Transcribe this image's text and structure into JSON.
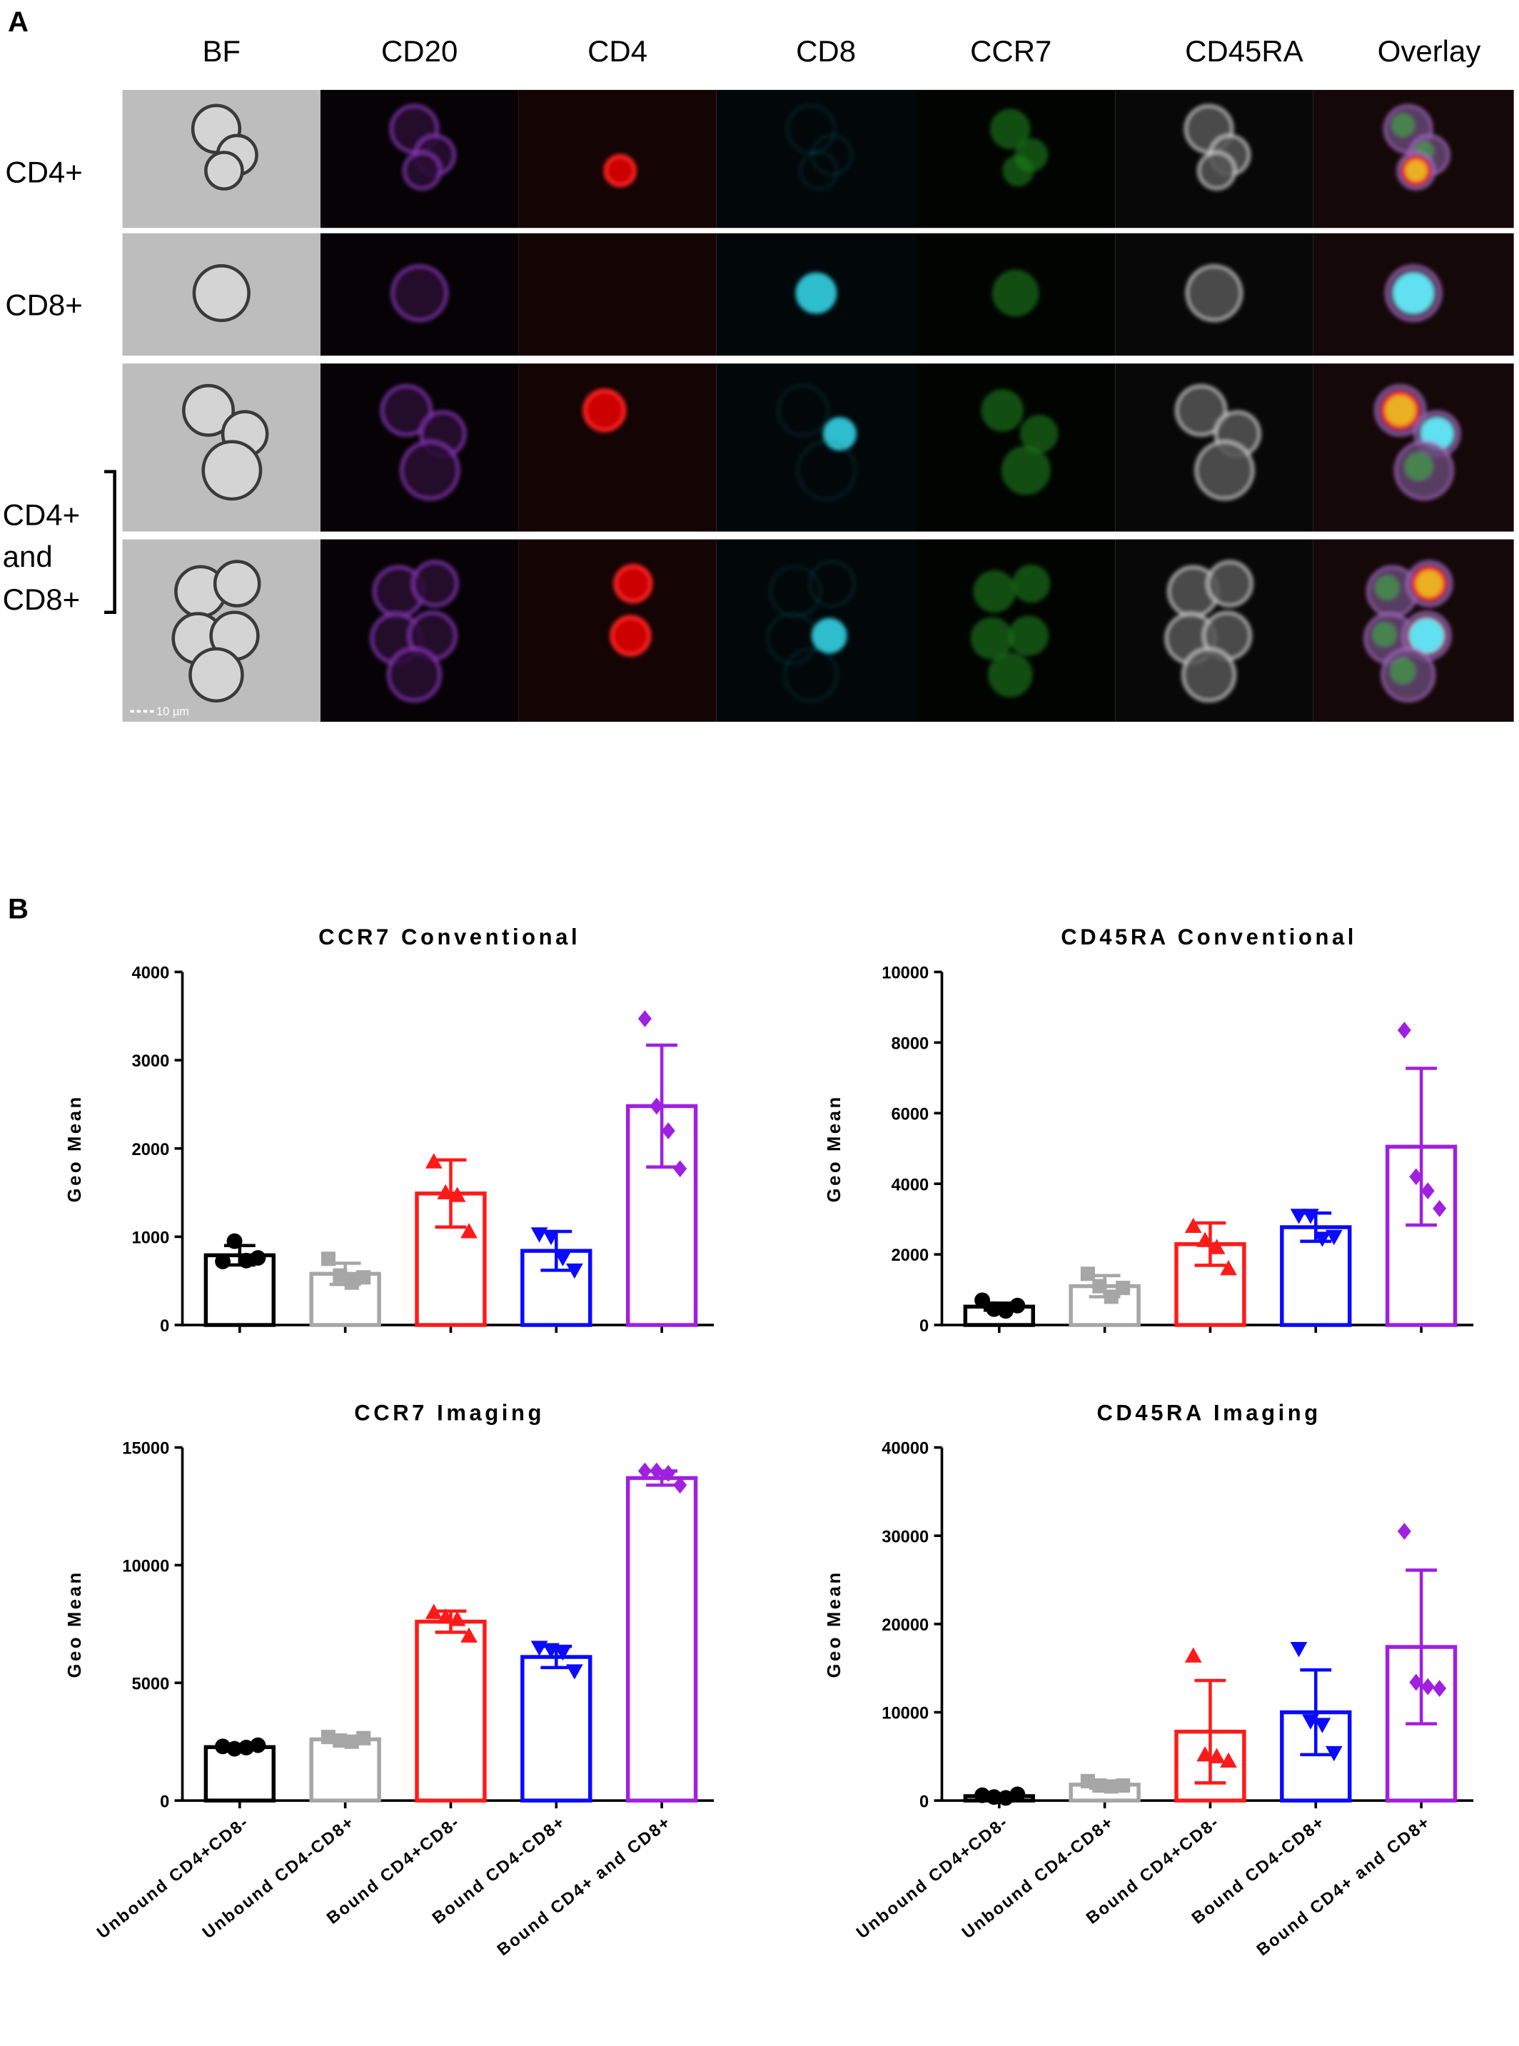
{
  "panel_a": {
    "label": "A",
    "columns": [
      "BF",
      "CD20",
      "CD4",
      "CD8",
      "CCR7",
      "CD45RA",
      "Overlay"
    ],
    "rows": [
      "CD4+",
      "CD8+"
    ],
    "group_label": [
      "CD4+",
      "and",
      "CD8+"
    ],
    "scale_bar": "10 µm"
  },
  "panel_b": {
    "label": "B"
  },
  "chart_data": [
    {
      "type": "bar",
      "title": "CCR7 Conventional",
      "ylabel": "Geo Mean",
      "categories": [
        null,
        null,
        null,
        null,
        null
      ],
      "values": [
        790,
        580,
        1490,
        840,
        2480
      ],
      "errors": [
        110,
        120,
        380,
        220,
        690
      ],
      "points": [
        [
          720,
          950,
          730,
          760
        ],
        [
          750,
          560,
          480,
          540
        ],
        [
          1850,
          1500,
          1470,
          1060
        ],
        [
          1030,
          1000,
          760,
          620
        ],
        [
          3470,
          2480,
          2200,
          1770
        ]
      ],
      "colors": [
        "#000000",
        "#a6a6a6",
        "#ff1a1a",
        "#0a0aff",
        "#a020e0"
      ],
      "markers": [
        "circle",
        "square",
        "triangle-up",
        "triangle-down",
        "diamond"
      ],
      "ylim": [
        0,
        4000
      ],
      "yticks": [
        0,
        1000,
        2000,
        3000,
        4000
      ]
    },
    {
      "type": "bar",
      "title": "CD45RA Conventional",
      "ylabel": "Geo Mean",
      "categories": [
        null,
        null,
        null,
        null,
        null
      ],
      "values": [
        520,
        1100,
        2290,
        2770,
        5050
      ],
      "errors": [
        100,
        300,
        600,
        400,
        2220
      ],
      "points": [
        [
          700,
          450,
          400,
          550
        ],
        [
          1450,
          1100,
          800,
          1050
        ],
        [
          2800,
          2400,
          2200,
          1600
        ],
        [
          3100,
          3100,
          2450,
          2500
        ],
        [
          8350,
          4200,
          3800,
          3300
        ]
      ],
      "colors": [
        "#000000",
        "#a6a6a6",
        "#ff1a1a",
        "#0a0aff",
        "#a020e0"
      ],
      "markers": [
        "circle",
        "square",
        "triangle-up",
        "triangle-down",
        "diamond"
      ],
      "ylim": [
        0,
        10000
      ],
      "yticks": [
        0,
        2000,
        4000,
        6000,
        8000,
        10000
      ]
    },
    {
      "type": "bar",
      "title": "CCR7 Imaging",
      "ylabel": "Geo Mean",
      "categories": [
        "Unbound CD4+CD8-",
        "Unbound CD4-CD8+",
        "Bound CD4+CD8-",
        "Bound CD4-CD8+",
        "Bound CD4+ and CD8+"
      ],
      "values": [
        2270,
        2600,
        7600,
        6100,
        13700
      ],
      "errors": [
        100,
        100,
        450,
        450,
        300
      ],
      "points": [
        [
          2300,
          2200,
          2250,
          2350
        ],
        [
          2700,
          2550,
          2500,
          2650
        ],
        [
          8000,
          7800,
          7700,
          7000
        ],
        [
          6500,
          6400,
          6300,
          5500
        ],
        [
          14000,
          14000,
          13900,
          13400
        ]
      ],
      "colors": [
        "#000000",
        "#a6a6a6",
        "#ff1a1a",
        "#0a0aff",
        "#a020e0"
      ],
      "markers": [
        "circle",
        "square",
        "triangle-up",
        "triangle-down",
        "diamond"
      ],
      "ylim": [
        0,
        15000
      ],
      "yticks": [
        0,
        5000,
        10000,
        15000
      ]
    },
    {
      "type": "bar",
      "title": "CD45RA Imaging",
      "ylabel": "Geo Mean",
      "categories": [
        "Unbound CD4+CD8-",
        "Unbound CD4-CD8+",
        "Bound CD4+CD8-",
        "Bound CD4-CD8+",
        "Bound CD4+ and CD8+"
      ],
      "values": [
        500,
        1800,
        7800,
        10000,
        17400
      ],
      "errors": [
        200,
        400,
        5800,
        4800,
        8700
      ],
      "points": [
        [
          600,
          400,
          300,
          700
        ],
        [
          2200,
          1700,
          1600,
          1700
        ],
        [
          16400,
          5200,
          5000,
          4500
        ],
        [
          17200,
          9000,
          8600,
          5400
        ],
        [
          30500,
          13400,
          12900,
          12700
        ]
      ],
      "colors": [
        "#000000",
        "#a6a6a6",
        "#ff1a1a",
        "#0a0aff",
        "#a020e0"
      ],
      "markers": [
        "circle",
        "square",
        "triangle-up",
        "triangle-down",
        "diamond"
      ],
      "ylim": [
        0,
        40000
      ],
      "yticks": [
        0,
        10000,
        20000,
        30000,
        40000
      ]
    }
  ]
}
